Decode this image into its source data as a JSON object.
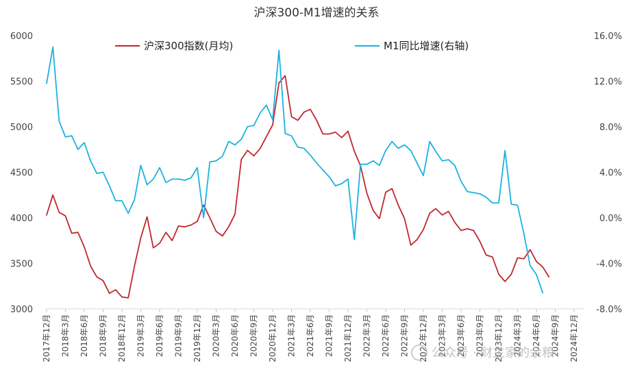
{
  "chart_data": {
    "type": "line",
    "title": "沪深300-M1增速的关系",
    "legend_position": "top",
    "grid": false,
    "x_labels": [
      "2017年12月",
      "2018年3月",
      "2018年6月",
      "2018年9月",
      "2018年12月",
      "2019年3月",
      "2019年6月",
      "2019年9月",
      "2019年12月",
      "2020年3月",
      "2020年6月",
      "2020年9月",
      "2020年12月",
      "2021年3月",
      "2021年6月",
      "2021年9月",
      "2021年12月",
      "2022年3月",
      "2022年6月",
      "2022年9月",
      "2022年12月",
      "2023年3月",
      "2023年6月",
      "2023年9月",
      "2023年12月",
      "2024年3月",
      "2024年6月",
      "2024年9月",
      "2024年12月"
    ],
    "y_left": {
      "range": [
        3000,
        6000
      ],
      "ticks": [
        "3000",
        "3500",
        "4000",
        "4500",
        "5000",
        "5500",
        "6000"
      ]
    },
    "y_right": {
      "range": [
        -8,
        16
      ],
      "ticks": [
        "-8.0%",
        "-4.0%",
        "0.0%",
        "4.0%",
        "8.0%",
        "12.0%",
        "16.0%"
      ]
    },
    "series": [
      {
        "name": "沪深300指数(月均)",
        "axis": "left",
        "color": "#c0272d",
        "values": [
          4030,
          4250,
          4060,
          4020,
          3830,
          3840,
          3680,
          3470,
          3350,
          3310,
          3170,
          3210,
          3130,
          3120,
          3470,
          3780,
          4010,
          3670,
          3720,
          3840,
          3750,
          3910,
          3900,
          3920,
          3960,
          4140,
          4000,
          3850,
          3800,
          3900,
          4040,
          4640,
          4740,
          4680,
          4760,
          4890,
          5020,
          5480,
          5560,
          5110,
          5070,
          5160,
          5190,
          5070,
          4920,
          4920,
          4940,
          4880,
          4950,
          4730,
          4570,
          4270,
          4080,
          3990,
          4280,
          4320,
          4140,
          3990,
          3700,
          3760,
          3870,
          4050,
          4100,
          4030,
          4070,
          3950,
          3860,
          3880,
          3860,
          3740,
          3590,
          3570,
          3380,
          3300,
          3380,
          3560,
          3550,
          3650,
          3520,
          3460,
          3350
        ]
      },
      {
        "name": "M1同比增速(右轴)",
        "axis": "right",
        "color": "#1ab2e0",
        "values": [
          11.8,
          15.0,
          8.5,
          7.1,
          7.2,
          6.0,
          6.6,
          5.0,
          3.9,
          4.0,
          2.8,
          1.5,
          1.5,
          0.4,
          1.6,
          4.6,
          2.9,
          3.4,
          4.4,
          3.1,
          3.4,
          3.4,
          3.3,
          3.5,
          4.4,
          0.0,
          4.9,
          5.0,
          5.4,
          6.7,
          6.4,
          6.9,
          8.0,
          8.1,
          9.2,
          9.9,
          8.6,
          14.7,
          7.4,
          7.2,
          6.2,
          6.1,
          5.5,
          4.8,
          4.2,
          3.6,
          2.8,
          3.0,
          3.4,
          -1.9,
          4.7,
          4.7,
          5.0,
          4.6,
          5.9,
          6.7,
          6.1,
          6.4,
          5.9,
          4.8,
          3.7,
          6.7,
          5.8,
          5.0,
          5.1,
          4.6,
          3.2,
          2.3,
          2.2,
          2.1,
          1.8,
          1.3,
          1.3,
          5.9,
          1.2,
          1.1,
          -1.4,
          -4.2,
          -5.0,
          -6.6
        ]
      }
    ]
  },
  "watermark": "公众号 · 财主家的余粮"
}
